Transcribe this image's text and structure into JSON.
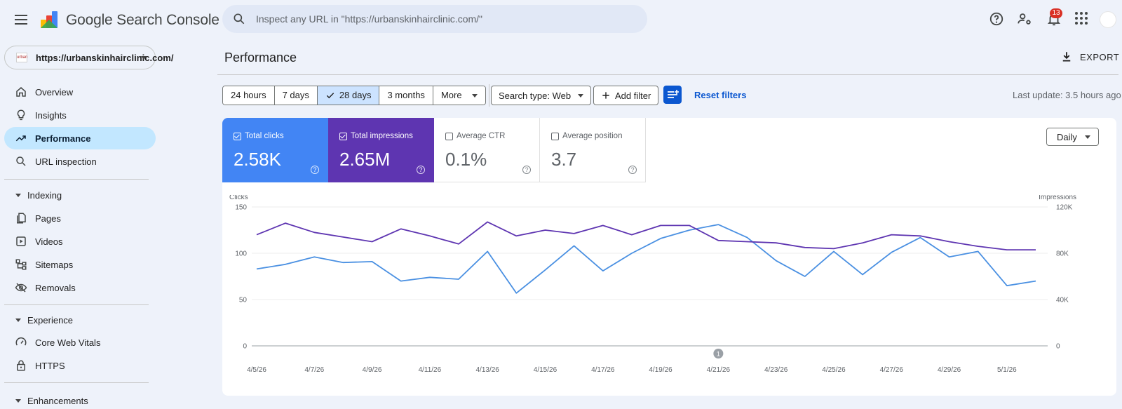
{
  "app": {
    "brand": "Google Search Console"
  },
  "search": {
    "placeholder": "Inspect any URL in \"https://urbanskinhairclinic.com/\""
  },
  "topbar": {
    "notification_count": "13",
    "icons": [
      "help-icon",
      "manage-users-icon",
      "notifications-icon",
      "apps-grid-icon"
    ]
  },
  "property": {
    "label": "https://urbanskinhairclinic.com/",
    "favicon_text": "urban"
  },
  "sidebar": {
    "items": [
      {
        "label": "Overview",
        "icon": "home-icon"
      },
      {
        "label": "Insights",
        "icon": "lightbulb-icon"
      },
      {
        "label": "Performance",
        "icon": "trending-up-icon",
        "active": true
      },
      {
        "label": "URL inspection",
        "icon": "search-icon"
      }
    ],
    "indexing": {
      "title": "Indexing",
      "items": [
        {
          "label": "Pages",
          "icon": "pages-icon"
        },
        {
          "label": "Videos",
          "icon": "video-icon"
        },
        {
          "label": "Sitemaps",
          "icon": "sitemap-icon"
        },
        {
          "label": "Removals",
          "icon": "eye-off-icon"
        }
      ]
    },
    "experience": {
      "title": "Experience",
      "items": [
        {
          "label": "Core Web Vitals",
          "icon": "speed-gauge-icon"
        },
        {
          "label": "HTTPS",
          "icon": "lock-icon"
        }
      ]
    },
    "enhancements": {
      "title": "Enhancements"
    }
  },
  "page": {
    "title": "Performance",
    "export_label": "EXPORT"
  },
  "filters": {
    "ranges": [
      "24 hours",
      "7 days",
      "28 days",
      "3 months"
    ],
    "selected_range": "28 days",
    "more": "More",
    "search_type": "Search type: Web",
    "add_filter": "Add filter",
    "reset": "Reset filters",
    "last_update": "Last update: 3.5 hours ago"
  },
  "metrics": [
    {
      "label": "Total clicks",
      "value": "2.58K",
      "checked": true,
      "color": "#4285f4"
    },
    {
      "label": "Total impressions",
      "value": "2.65M",
      "checked": true,
      "color": "#5e35b1"
    },
    {
      "label": "Average CTR",
      "value": "0.1%",
      "checked": false
    },
    {
      "label": "Average position",
      "value": "3.7",
      "checked": false
    }
  ],
  "granularity": "Daily",
  "chart_data": {
    "type": "line",
    "left_axis_label": "Clicks",
    "right_axis_label": "Impressions",
    "left_ylim": [
      0,
      150
    ],
    "right_ylim": [
      0,
      120000
    ],
    "left_ticks": [
      "0",
      "50",
      "100",
      "150"
    ],
    "right_ticks": [
      "0",
      "40K",
      "80K",
      "120K"
    ],
    "x_tick_labels": [
      "4/5/26",
      "4/7/26",
      "4/9/26",
      "4/11/26",
      "4/13/26",
      "4/15/26",
      "4/17/26",
      "4/19/26",
      "4/21/26",
      "4/23/26",
      "4/25/26",
      "4/27/26",
      "4/29/26",
      "5/1/26"
    ],
    "x": [
      "4/5/26",
      "4/6/26",
      "4/7/26",
      "4/8/26",
      "4/9/26",
      "4/10/26",
      "4/11/26",
      "4/12/26",
      "4/13/26",
      "4/14/26",
      "4/15/26",
      "4/16/26",
      "4/17/26",
      "4/18/26",
      "4/19/26",
      "4/20/26",
      "4/21/26",
      "4/22/26",
      "4/23/26",
      "4/24/26",
      "4/25/26",
      "4/26/26",
      "4/27/26",
      "4/28/26",
      "4/29/26",
      "4/30/26",
      "5/1/26",
      "5/2/26"
    ],
    "series": [
      {
        "name": "Clicks",
        "axis": "left",
        "color": "#4a90e2",
        "values": [
          83,
          88,
          96,
          90,
          91,
          70,
          74,
          72,
          102,
          57,
          82,
          108,
          81,
          100,
          116,
          125,
          131,
          117,
          92,
          75,
          102,
          77,
          101,
          117,
          96,
          102,
          65,
          70
        ]
      },
      {
        "name": "Impressions",
        "axis": "right",
        "color": "#5e35b1",
        "values": [
          96000,
          106000,
          98000,
          94000,
          90000,
          101000,
          95000,
          88000,
          107000,
          95000,
          100000,
          97000,
          104000,
          96000,
          104000,
          104000,
          91000,
          90000,
          89000,
          85000,
          84000,
          89000,
          96000,
          95000,
          90000,
          86000,
          83000,
          83000
        ]
      }
    ],
    "annotation": {
      "label": "1",
      "x": "4/21/26"
    },
    "grid": true
  }
}
